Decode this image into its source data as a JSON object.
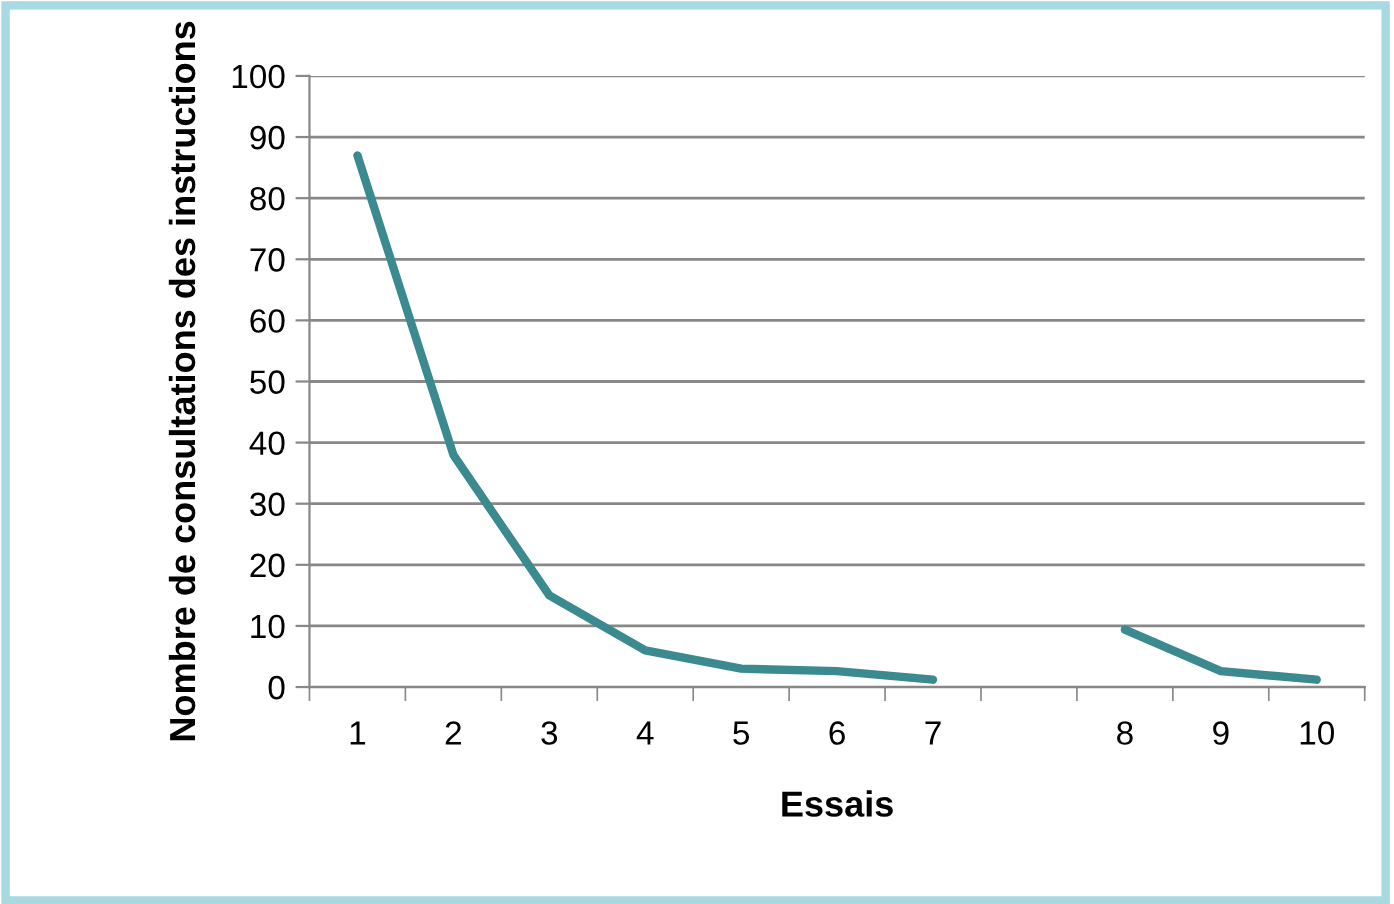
{
  "chart_data": {
    "type": "line",
    "xlabel": "Essais",
    "ylabel": "Nombre de consultations des instructions",
    "categories": [
      "1",
      "2",
      "3",
      "4",
      "5",
      "6",
      "7",
      null,
      "8",
      "9",
      "10"
    ],
    "series": [
      {
        "color": "#3a8a8f",
        "values": [
          87,
          38,
          15,
          6,
          3,
          2.6,
          1.2,
          null,
          9.4,
          2.6,
          1.2
        ]
      }
    ],
    "ylim": [
      0,
      100
    ],
    "yticks": [
      0,
      10,
      20,
      30,
      40,
      50,
      60,
      70,
      80,
      90,
      100
    ],
    "grid": "y",
    "legend": false,
    "marker": "none",
    "line_style": "solid"
  }
}
